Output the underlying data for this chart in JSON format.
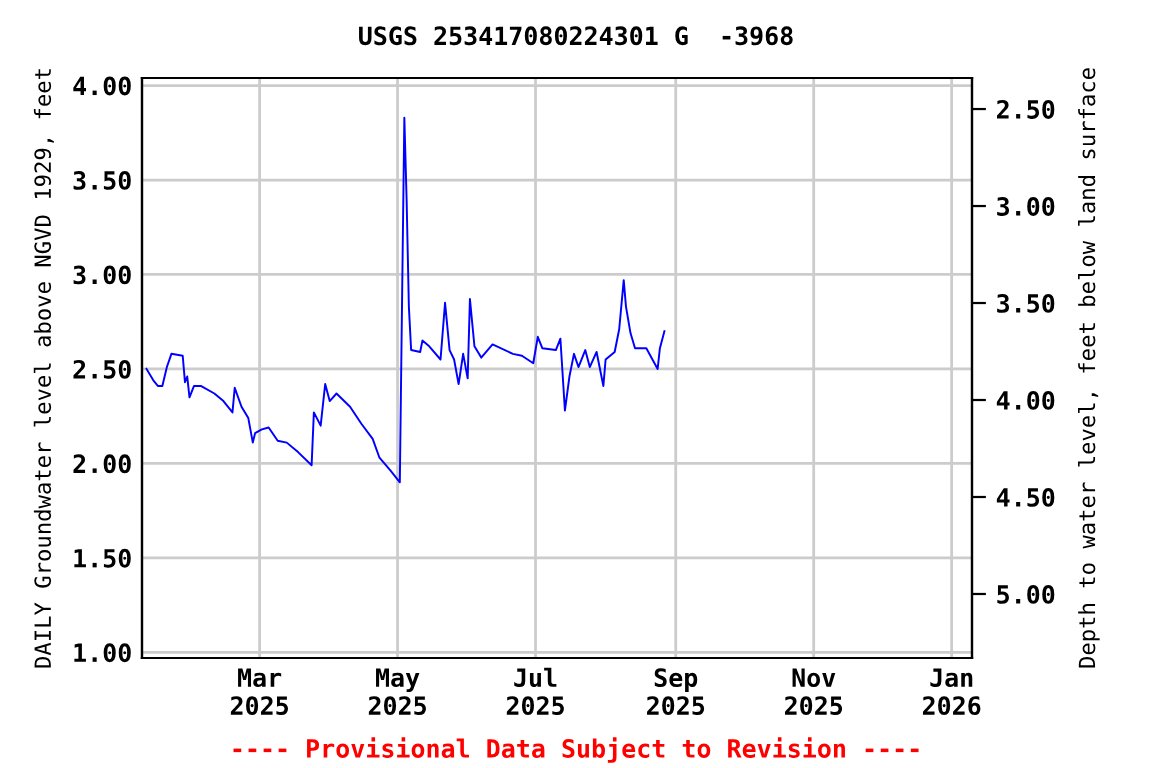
{
  "chart_data": {
    "type": "line",
    "title": "USGS 253417080224301 G  -3968",
    "xlabel": null,
    "ylabel": "DAILY Groundwater level above NGVD 1929, feet",
    "y2label": "Depth to water level, feet below land surface",
    "annotations": [
      "---- Provisional Data Subject to Revision ----"
    ],
    "xlim": [
      "2025-01-08",
      "2026-01-10"
    ],
    "xticks": [
      {
        "value": "2025-03-01",
        "label": "Mar\n2025"
      },
      {
        "value": "2025-05-01",
        "label": "May\n2025"
      },
      {
        "value": "2025-07-01",
        "label": "Jul\n2025"
      },
      {
        "value": "2025-09-01",
        "label": "Sep\n2025"
      },
      {
        "value": "2025-11-01",
        "label": "Nov\n2025"
      },
      {
        "value": "2026-01-01",
        "label": "Jan\n2026"
      }
    ],
    "ylim": [
      0.97,
      4.04
    ],
    "yticks": [
      {
        "value": 1.0,
        "label": "1.00"
      },
      {
        "value": 1.5,
        "label": "1.50"
      },
      {
        "value": 2.0,
        "label": "2.00"
      },
      {
        "value": 2.5,
        "label": "2.50"
      },
      {
        "value": 3.0,
        "label": "3.00"
      },
      {
        "value": 3.5,
        "label": "3.50"
      },
      {
        "value": 4.0,
        "label": "4.00"
      }
    ],
    "y2lim": [
      5.33,
      2.34
    ],
    "y2ticks": [
      {
        "value": 2.5,
        "label": "2.50"
      },
      {
        "value": 3.0,
        "label": "3.00"
      },
      {
        "value": 3.5,
        "label": "3.50"
      },
      {
        "value": 4.0,
        "label": "4.00"
      },
      {
        "value": 4.5,
        "label": "4.50"
      },
      {
        "value": 5.0,
        "label": "5.00"
      }
    ],
    "grid": true,
    "series": [
      {
        "color": "#0000ff",
        "x": [
          "2025-01-10",
          "2025-01-13",
          "2025-01-15",
          "2025-01-17",
          "2025-01-19",
          "2025-01-21",
          "2025-01-26",
          "2025-01-27",
          "2025-01-28",
          "2025-01-29",
          "2025-01-31",
          "2025-02-03",
          "2025-02-09",
          "2025-02-13",
          "2025-02-17",
          "2025-02-18",
          "2025-02-21",
          "2025-02-24",
          "2025-02-26",
          "2025-02-27",
          "2025-03-02",
          "2025-03-05",
          "2025-03-09",
          "2025-03-13",
          "2025-03-18",
          "2025-03-24",
          "2025-03-25",
          "2025-03-28",
          "2025-03-30",
          "2025-04-01",
          "2025-04-04",
          "2025-04-10",
          "2025-04-15",
          "2025-04-20",
          "2025-04-23",
          "2025-04-28",
          "2025-05-02",
          "2025-05-03",
          "2025-05-04",
          "2025-05-05",
          "2025-05-06",
          "2025-05-07",
          "2025-05-11",
          "2025-05-12",
          "2025-05-15",
          "2025-05-20",
          "2025-05-22",
          "2025-05-24",
          "2025-05-26",
          "2025-05-28",
          "2025-05-30",
          "2025-06-01",
          "2025-06-02",
          "2025-06-04",
          "2025-06-07",
          "2025-06-12",
          "2025-06-21",
          "2025-06-25",
          "2025-06-30",
          "2025-07-02",
          "2025-07-04",
          "2025-07-10",
          "2025-07-12",
          "2025-07-14",
          "2025-07-16",
          "2025-07-18",
          "2025-07-20",
          "2025-07-23",
          "2025-07-25",
          "2025-07-28",
          "2025-07-31",
          "2025-08-01",
          "2025-08-05",
          "2025-08-07",
          "2025-08-09",
          "2025-08-10",
          "2025-08-12",
          "2025-08-14",
          "2025-08-19",
          "2025-08-24",
          "2025-08-25",
          "2025-08-27"
        ],
        "values": [
          2.5,
          2.44,
          2.41,
          2.41,
          2.51,
          2.58,
          2.57,
          2.43,
          2.46,
          2.35,
          2.41,
          2.41,
          2.37,
          2.33,
          2.27,
          2.4,
          2.3,
          2.24,
          2.11,
          2.16,
          2.18,
          2.19,
          2.12,
          2.11,
          2.06,
          1.99,
          2.27,
          2.2,
          2.42,
          2.33,
          2.37,
          2.3,
          2.21,
          2.13,
          2.03,
          1.96,
          1.9,
          2.87,
          3.83,
          3.4,
          2.83,
          2.6,
          2.59,
          2.65,
          2.62,
          2.55,
          2.85,
          2.6,
          2.55,
          2.42,
          2.58,
          2.45,
          2.87,
          2.62,
          2.56,
          2.63,
          2.58,
          2.57,
          2.53,
          2.67,
          2.61,
          2.6,
          2.66,
          2.28,
          2.46,
          2.58,
          2.51,
          2.6,
          2.51,
          2.59,
          2.41,
          2.55,
          2.59,
          2.71,
          2.97,
          2.83,
          2.69,
          2.61,
          2.61,
          2.5,
          2.61,
          2.7
        ]
      }
    ]
  }
}
